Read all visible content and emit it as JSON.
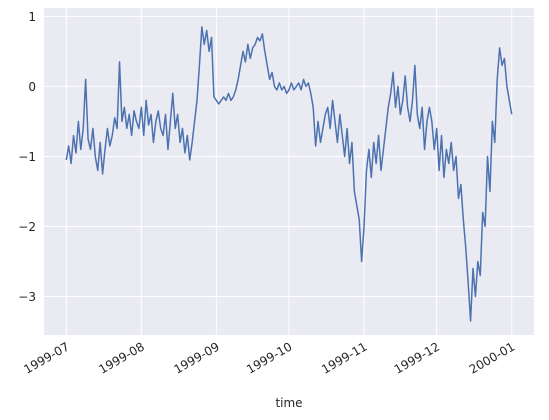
{
  "chart_data": {
    "type": "line",
    "xlabel": "time",
    "x": [
      0,
      1,
      2,
      3,
      4,
      5,
      6,
      7,
      8,
      9,
      10,
      11,
      12,
      13,
      14,
      15,
      16,
      17,
      18,
      19,
      20,
      21,
      22,
      23,
      24,
      25,
      26,
      27,
      28,
      29,
      30,
      31,
      32,
      33,
      34,
      35,
      36,
      37,
      38,
      39,
      40,
      41,
      42,
      43,
      44,
      45,
      46,
      47,
      48,
      49,
      50,
      51,
      52,
      53,
      54,
      55,
      56,
      57,
      58,
      59,
      60,
      61,
      62,
      63,
      64,
      65,
      66,
      67,
      68,
      69,
      70,
      71,
      72,
      73,
      74,
      75,
      76,
      77,
      78,
      79,
      80,
      81,
      82,
      83,
      84,
      85,
      86,
      87,
      88,
      89,
      90,
      91,
      92,
      93,
      94,
      95,
      96,
      97,
      98,
      99,
      100,
      101,
      102,
      103,
      104,
      105,
      106,
      107,
      108,
      109,
      110,
      111,
      112,
      113,
      114,
      115,
      116,
      117,
      118,
      119,
      120,
      121,
      122,
      123,
      124,
      125,
      126,
      127,
      128,
      129,
      130,
      131,
      132,
      133,
      134,
      135,
      136,
      137,
      138,
      139,
      140,
      141,
      142,
      143,
      144,
      145,
      146,
      147,
      148,
      149,
      150,
      151,
      152,
      153,
      154,
      155,
      156,
      157,
      158,
      159,
      160,
      161,
      162,
      163,
      164,
      165,
      166,
      167,
      168,
      169,
      170,
      171,
      172,
      173,
      174,
      175,
      176,
      177,
      178,
      179,
      180,
      181,
      182,
      183,
      184
    ],
    "values": [
      -1.05,
      -0.85,
      -1.1,
      -0.7,
      -0.95,
      -0.5,
      -0.9,
      -0.6,
      0.1,
      -0.75,
      -0.9,
      -0.6,
      -1.0,
      -1.2,
      -0.8,
      -1.25,
      -0.9,
      -0.6,
      -0.85,
      -0.7,
      -0.45,
      -0.6,
      0.35,
      -0.5,
      -0.3,
      -0.6,
      -0.4,
      -0.7,
      -0.35,
      -0.5,
      -0.6,
      -0.3,
      -0.7,
      -0.2,
      -0.55,
      -0.4,
      -0.8,
      -0.5,
      -0.35,
      -0.6,
      -0.7,
      -0.4,
      -0.9,
      -0.5,
      -0.1,
      -0.6,
      -0.4,
      -0.8,
      -0.6,
      -0.95,
      -0.7,
      -1.05,
      -0.8,
      -0.5,
      -0.2,
      0.3,
      0.85,
      0.6,
      0.8,
      0.5,
      0.7,
      -0.15,
      -0.2,
      -0.25,
      -0.2,
      -0.15,
      -0.2,
      -0.1,
      -0.2,
      -0.15,
      -0.05,
      0.1,
      0.3,
      0.5,
      0.35,
      0.6,
      0.4,
      0.55,
      0.6,
      0.7,
      0.65,
      0.75,
      0.5,
      0.3,
      0.1,
      0.2,
      0.0,
      -0.05,
      0.05,
      -0.05,
      0.0,
      -0.1,
      -0.05,
      0.05,
      -0.05,
      0.0,
      0.05,
      -0.05,
      0.1,
      0.0,
      0.05,
      -0.1,
      -0.3,
      -0.85,
      -0.5,
      -0.8,
      -0.6,
      -0.4,
      -0.3,
      -0.6,
      -0.2,
      -0.5,
      -0.8,
      -0.4,
      -0.7,
      -1.0,
      -0.6,
      -1.1,
      -0.8,
      -1.5,
      -1.7,
      -1.9,
      -2.5,
      -2.0,
      -1.2,
      -0.9,
      -1.3,
      -0.8,
      -1.1,
      -0.7,
      -1.2,
      -0.9,
      -0.6,
      -0.3,
      -0.1,
      0.2,
      -0.3,
      0.0,
      -0.4,
      -0.2,
      0.15,
      -0.3,
      -0.5,
      -0.2,
      0.3,
      -0.4,
      -0.6,
      -0.3,
      -0.9,
      -0.5,
      -0.3,
      -0.5,
      -0.9,
      -0.6,
      -1.2,
      -0.7,
      -1.3,
      -0.9,
      -1.1,
      -0.8,
      -1.2,
      -1.0,
      -1.6,
      -1.4,
      -1.9,
      -2.3,
      -2.8,
      -3.35,
      -2.6,
      -3.0,
      -2.5,
      -2.7,
      -1.8,
      -2.0,
      -1.0,
      -1.5,
      -0.5,
      -0.8,
      0.1,
      0.55,
      0.3,
      0.4,
      0.0,
      -0.2,
      -0.4
    ],
    "color": "#4c72b0",
    "xlim": [
      -9.2,
      193.2
    ],
    "xticks": [
      {
        "value": 0,
        "label": "1999-07"
      },
      {
        "value": 31,
        "label": "1999-08"
      },
      {
        "value": 62,
        "label": "1999-09"
      },
      {
        "value": 92,
        "label": "1999-10"
      },
      {
        "value": 123,
        "label": "1999-11"
      },
      {
        "value": 153,
        "label": "1999-12"
      },
      {
        "value": 184,
        "label": "2000-01"
      }
    ],
    "ylim": [
      -3.55,
      1.12
    ],
    "yticks": [
      1,
      0,
      {
        "value": -1,
        "label": "−1"
      },
      {
        "value": -2,
        "label": "−2"
      },
      {
        "value": -3,
        "label": "−3"
      }
    ],
    "grid": true
  }
}
